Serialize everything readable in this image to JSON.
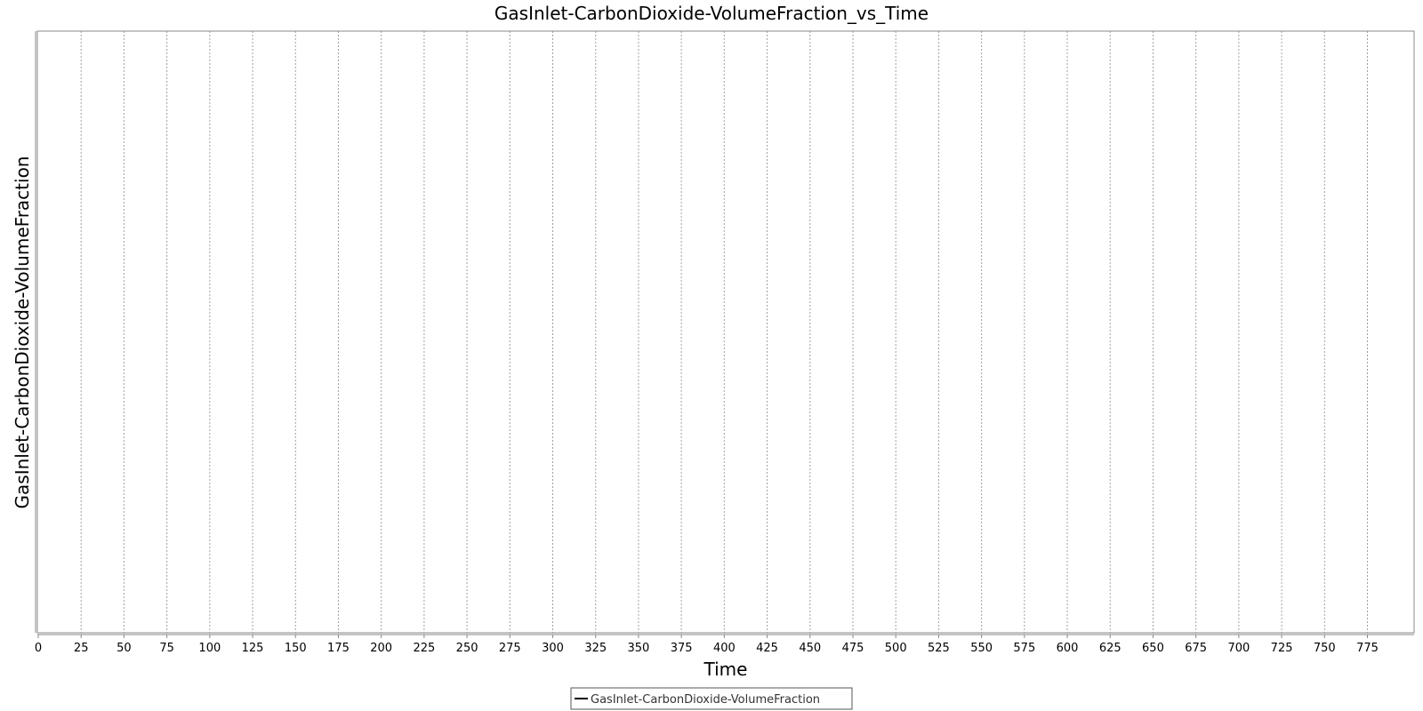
{
  "chart_data": {
    "type": "line",
    "title": "GasInlet-CarbonDioxide-VolumeFraction_vs_Time",
    "xlabel": "Time",
    "ylabel": "GasInlet-CarbonDioxide-VolumeFraction",
    "xlim": [
      0,
      790
    ],
    "x_ticks": [
      0,
      25,
      50,
      75,
      100,
      125,
      150,
      175,
      200,
      225,
      250,
      275,
      300,
      325,
      350,
      375,
      400,
      425,
      450,
      475,
      500,
      525,
      550,
      575,
      600,
      625,
      650,
      675,
      700,
      725,
      750,
      775
    ],
    "y_ticks": [],
    "grid": "vertical dashed",
    "legend_position": "bottom-center",
    "series": [
      {
        "name": "GasInlet-CarbonDioxide-VolumeFraction",
        "color": "#000000",
        "x": [],
        "y": []
      }
    ]
  }
}
